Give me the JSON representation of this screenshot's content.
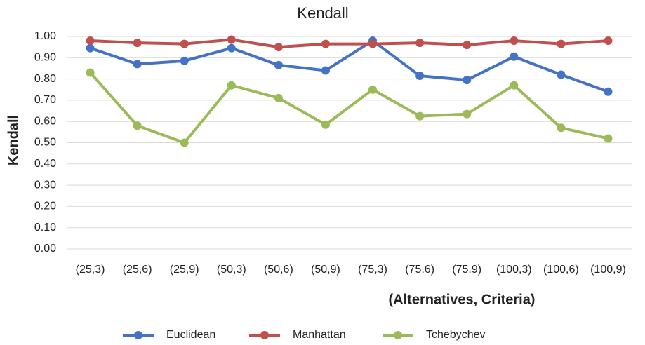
{
  "chart_data": {
    "type": "line",
    "title": "Kendall",
    "ylabel": "Kendall",
    "xlabel": "(Alternatives, Criteria)",
    "categories": [
      "(25,3)",
      "(25,6)",
      "(25,9)",
      "(50,3)",
      "(50,6)",
      "(50,9)",
      "(75,3)",
      "(75,6)",
      "(75,9)",
      "(100,3)",
      "(100,6)",
      "(100,9)"
    ],
    "series": [
      {
        "name": "Euclidean",
        "color": "#4472c4",
        "values": [
          0.945,
          0.87,
          0.885,
          0.945,
          0.865,
          0.84,
          0.98,
          0.815,
          0.795,
          0.905,
          0.82,
          0.74
        ]
      },
      {
        "name": "Manhattan",
        "color": "#c0504d",
        "values": [
          0.98,
          0.97,
          0.965,
          0.985,
          0.95,
          0.965,
          0.965,
          0.97,
          0.96,
          0.98,
          0.965,
          0.98
        ]
      },
      {
        "name": "Tchebychev",
        "color": "#9bbb59",
        "values": [
          0.83,
          0.58,
          0.5,
          0.77,
          0.71,
          0.585,
          0.75,
          0.625,
          0.635,
          0.77,
          0.57,
          0.52
        ]
      }
    ],
    "ylim": [
      0,
      1
    ],
    "yticks": [
      {
        "value": 0,
        "label": "0.00"
      },
      {
        "value": 0.1,
        "label": "0.10"
      },
      {
        "value": 0.2,
        "label": "0.20"
      },
      {
        "value": 0.3,
        "label": "0.30"
      },
      {
        "value": 0.4,
        "label": "0.40"
      },
      {
        "value": 0.5,
        "label": "0.50"
      },
      {
        "value": 0.6,
        "label": "0.60"
      },
      {
        "value": 0.7,
        "label": "0.70"
      },
      {
        "value": 0.8,
        "label": "0.80"
      },
      {
        "value": 0.9,
        "label": "0.90"
      },
      {
        "value": 1,
        "label": "1.00"
      }
    ],
    "grid": true,
    "legend": "bottom"
  }
}
